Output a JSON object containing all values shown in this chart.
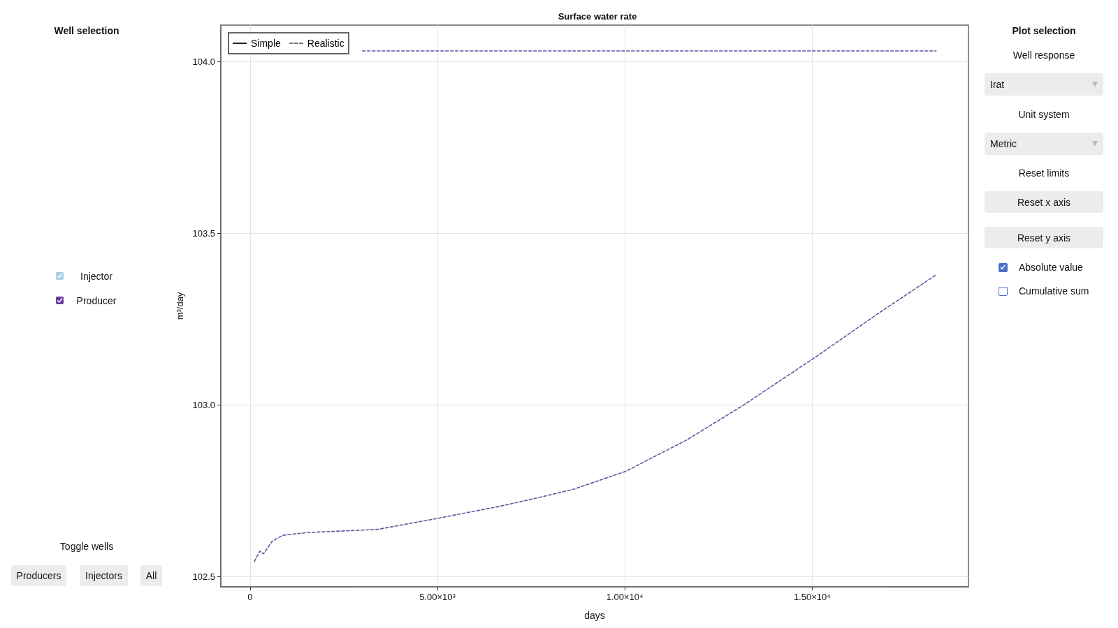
{
  "chart_data": {
    "type": "line",
    "title": "Surface water rate",
    "xlabel": "days",
    "ylabel": "m³/day",
    "xlim": [
      -780,
      19170
    ],
    "ylim": [
      102.471,
      104.106
    ],
    "xticks": [
      0,
      {
        "value": 5000,
        "label": "5.00×10³"
      },
      {
        "value": 10000,
        "label": "1.00×10⁴"
      },
      {
        "value": 15000,
        "label": "1.50×10⁴"
      }
    ],
    "yticks": [
      102.5,
      {
        "value": 103,
        "label": "103.0"
      },
      103.5,
      {
        "value": 104,
        "label": "104.0"
      }
    ],
    "grid": true,
    "line_style": "dashed",
    "marker": "none",
    "series": [
      {
        "color": "#6b4f9e",
        "x": [
          3000,
          18306
        ],
        "values": [
          104.031,
          104.031
        ]
      },
      {
        "color": "#6b4f9e",
        "x": [
          114,
          264,
          358,
          594,
          874,
          1526,
          3392,
          4945,
          6643,
          7594,
          8630,
          10021,
          11662,
          13139,
          15050,
          16711,
          18306
        ],
        "values": [
          102.545,
          102.575,
          102.567,
          102.604,
          102.621,
          102.629,
          102.638,
          102.669,
          102.705,
          102.728,
          102.755,
          102.807,
          102.899,
          102.998,
          103.137,
          103.263,
          103.379
        ]
      }
    ],
    "annotations": [
      "Well selection",
      "Injector",
      "Producer",
      "Toggle wells",
      "Producers",
      "Injectors",
      "All",
      "Plot selection",
      "Well response",
      "Irat",
      "Unit system",
      "Metric",
      "Reset limits",
      "Reset x axis",
      "Reset y axis",
      "Absolute value",
      "Cumulative sum",
      "Simple",
      "Realistic"
    ]
  }
}
